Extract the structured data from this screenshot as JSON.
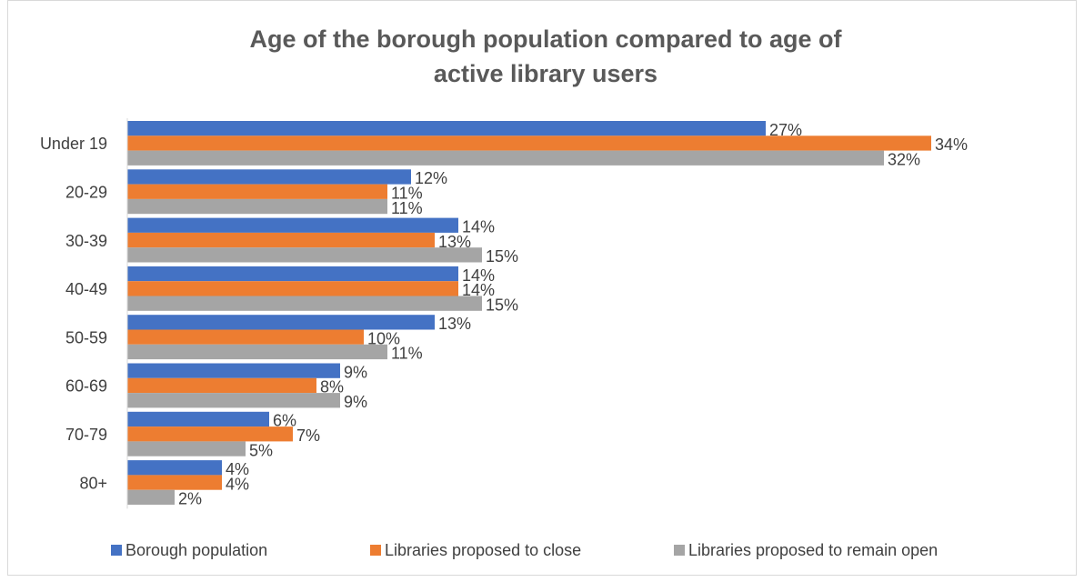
{
  "chart_data": {
    "type": "hbar",
    "title": "Age of the borough population compared to age of active library users",
    "categories": [
      "Under 19",
      "20-29",
      "30-39",
      "40-49",
      "50-59",
      "60-69",
      "70-79",
      "80+"
    ],
    "series": [
      {
        "name": "Borough population",
        "color": "#4472c4",
        "values": [
          27,
          12,
          14,
          14,
          13,
          9,
          6,
          4
        ],
        "value_labels": [
          "27%",
          "12%",
          "14%",
          "14%",
          "13%",
          "9%",
          "6%",
          "4%"
        ]
      },
      {
        "name": "Libraries proposed to close",
        "color": "#ed7d31",
        "values": [
          34,
          11,
          13,
          14,
          10,
          8,
          7,
          4
        ],
        "value_labels": [
          "34%",
          "11%",
          "13%",
          "14%",
          "10%",
          "8%",
          "7%",
          "4%"
        ]
      },
      {
        "name": "Libraries proposed to remain open",
        "color": "#a5a5a5",
        "values": [
          32,
          11,
          15,
          15,
          11,
          9,
          5,
          2
        ],
        "value_labels": [
          "32%",
          "11%",
          "15%",
          "15%",
          "11%",
          "9%",
          "5%",
          "2%"
        ]
      }
    ],
    "legend": "bottom"
  }
}
